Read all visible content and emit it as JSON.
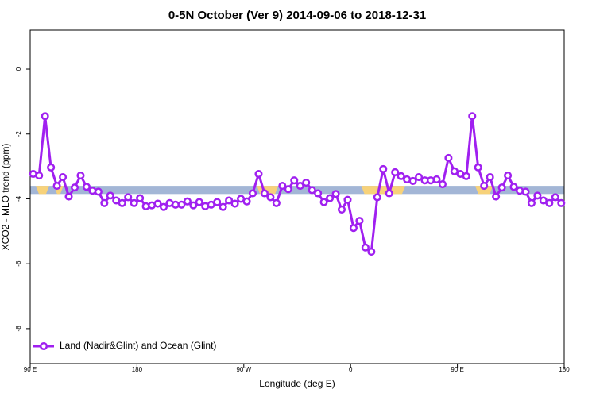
{
  "chart_data": {
    "type": "line",
    "title": "0-5N October (Ver 9)   2014-09-06 to 2018-12-31",
    "xlabel": "Longitude (deg E)",
    "ylabel": "XCO2 - MLO trend (ppm)",
    "xlim": [
      90,
      540
    ],
    "ylim": [
      -9.08,
      1.2
    ],
    "xticks": [
      {
        "value": 90,
        "label": "90 E"
      },
      180,
      {
        "value": 270,
        "label": "90 W"
      },
      {
        "value": 360,
        "label": "0"
      },
      {
        "value": 450,
        "label": "90 E"
      },
      {
        "value": 540,
        "label": "180"
      }
    ],
    "yticks": [
      0,
      -2,
      -4,
      -6,
      -8
    ],
    "reference_band": {
      "ymin": -3.85,
      "ymax": -3.6,
      "color": "#a3b6d6"
    },
    "highlight_ranges": {
      "color": "#f7d27a",
      "ranges": [
        [
          94.7,
          106
        ],
        [
          110,
          118
        ],
        [
          281,
          299
        ],
        [
          369,
          406
        ],
        [
          465,
          480
        ]
      ]
    },
    "legend": "bottom-left",
    "x": [
      92.5,
      97.5,
      102.5,
      107.5,
      112.5,
      117.5,
      122.5,
      127.5,
      132.5,
      137.5,
      142.5,
      147.5,
      152.5,
      157.5,
      162.5,
      167.5,
      172.5,
      177.5,
      182.5,
      187.5,
      192.5,
      197.5,
      202.5,
      207.5,
      212.5,
      217.5,
      222.5,
      227.5,
      232.5,
      237.5,
      242.5,
      247.5,
      252.5,
      257.5,
      262.5,
      267.5,
      272.5,
      277.5,
      282.5,
      287.5,
      292.5,
      297.5,
      302.5,
      307.5,
      312.5,
      317.5,
      322.5,
      327.5,
      332.5,
      337.5,
      342.5,
      347.5,
      352.5,
      357.5,
      362.5,
      367.5,
      372.5,
      377.5,
      382.5,
      387.5,
      392.5,
      397.5,
      402.5,
      407.5,
      412.5,
      417.5,
      422.5,
      427.5,
      432.5,
      437.5,
      442.5,
      447.5,
      452.5,
      457.5,
      462.5,
      467.5,
      472.5,
      477.5,
      482.5,
      487.5,
      492.5,
      497.5,
      502.5,
      507.5,
      512.5,
      517.5,
      522.5,
      527.5,
      532.5,
      537.5
    ],
    "series": [
      {
        "name": "Land (Nadir&Glint) and Ocean (Glint)",
        "color": "#a020f0",
        "values": [
          -3.23,
          -3.28,
          -1.45,
          -3.03,
          -3.6,
          -3.33,
          -3.93,
          -3.65,
          -3.28,
          -3.63,
          -3.75,
          -3.78,
          -4.13,
          -3.9,
          -4.05,
          -4.13,
          -3.95,
          -4.13,
          -3.98,
          -4.23,
          -4.2,
          -4.15,
          -4.25,
          -4.13,
          -4.18,
          -4.18,
          -4.08,
          -4.2,
          -4.1,
          -4.23,
          -4.18,
          -4.1,
          -4.25,
          -4.05,
          -4.15,
          -4.0,
          -4.08,
          -3.83,
          -3.23,
          -3.83,
          -3.95,
          -4.13,
          -3.6,
          -3.7,
          -3.43,
          -3.6,
          -3.5,
          -3.73,
          -3.83,
          -4.1,
          -3.98,
          -3.85,
          -4.33,
          -4.03,
          -4.9,
          -4.68,
          -5.5,
          -5.63,
          -3.95,
          -3.08,
          -3.83,
          -3.18,
          -3.3,
          -3.4,
          -3.45,
          -3.33,
          -3.43,
          -3.43,
          -3.4,
          -3.55,
          -2.74,
          -3.15,
          -3.23,
          -3.3,
          -1.45,
          -3.03,
          -3.6,
          -3.33,
          -3.93,
          -3.65,
          -3.28,
          -3.63,
          -3.75,
          -3.78,
          -4.13,
          -3.9,
          -4.05,
          -4.13,
          -3.95,
          -4.13
        ]
      }
    ]
  }
}
